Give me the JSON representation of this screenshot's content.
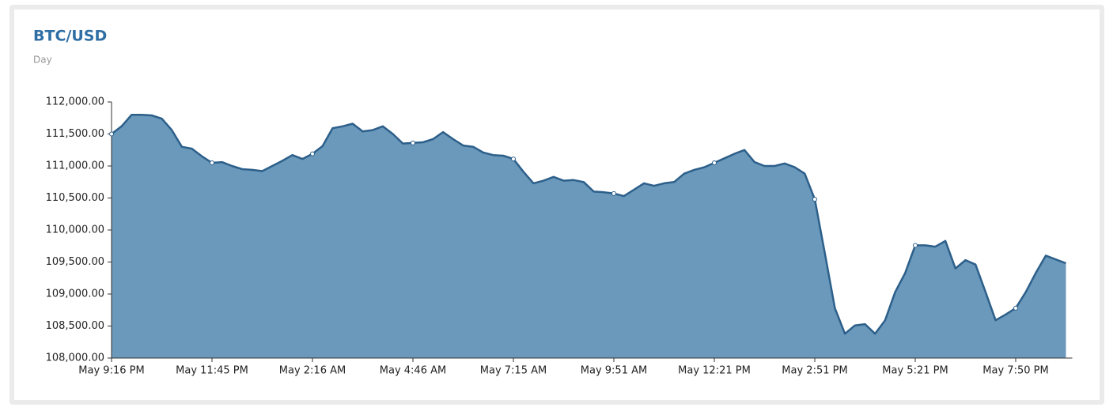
{
  "chart_data": {
    "type": "area",
    "title": "BTC/USD",
    "subtitle": "Day",
    "color": "#6b99bb",
    "line_color": "#2c5f8a",
    "categories": [
      "May 9:16 PM",
      null,
      null,
      null,
      null,
      null,
      null,
      null,
      null,
      null,
      "May 11:45 PM",
      null,
      null,
      null,
      null,
      null,
      null,
      null,
      null,
      null,
      "May 2:16 AM",
      null,
      null,
      null,
      null,
      null,
      null,
      null,
      null,
      null,
      "May 4:46 AM",
      null,
      null,
      null,
      null,
      null,
      null,
      null,
      null,
      null,
      "May 7:15 AM",
      null,
      null,
      null,
      null,
      null,
      null,
      null,
      null,
      null,
      "May 9:51 AM",
      null,
      null,
      null,
      null,
      null,
      null,
      null,
      null,
      null,
      "May 12:21 PM",
      null,
      null,
      null,
      null,
      null,
      null,
      null,
      null,
      null,
      "May 2:51 PM",
      null,
      null,
      null,
      null,
      null,
      null,
      null,
      null,
      null,
      "May 5:21 PM",
      null,
      null,
      null,
      null,
      null,
      null,
      null,
      null,
      null,
      "May 7:50 PM",
      null,
      null,
      null,
      null,
      null
    ],
    "values": [
      111500,
      111620,
      111800,
      111800,
      111790,
      111740,
      111560,
      111300,
      111270,
      111150,
      111050,
      111060,
      111000,
      110950,
      110940,
      110920,
      111000,
      111080,
      111170,
      111110,
      111190,
      111310,
      111590,
      111620,
      111660,
      111540,
      111560,
      111620,
      111500,
      111350,
      111360,
      111370,
      111420,
      111530,
      111420,
      111320,
      111300,
      111210,
      111170,
      111160,
      111110,
      110910,
      110730,
      110770,
      110830,
      110770,
      110780,
      110750,
      110600,
      110590,
      110570,
      110530,
      110630,
      110730,
      110690,
      110730,
      110750,
      110880,
      110940,
      110980,
      111050,
      111120,
      111190,
      111250,
      111060,
      111000,
      111000,
      111040,
      110980,
      110880,
      110480,
      109640,
      108780,
      108380,
      108510,
      108530,
      108380,
      108590,
      109030,
      109330,
      109760,
      109760,
      109740,
      109830,
      109400,
      109530,
      109460,
      109030,
      108590,
      108680,
      108780,
      109030,
      109330,
      109600,
      109540,
      109480
    ],
    "ylim": [
      108000,
      112000
    ],
    "yticks": [
      {
        "value": 108000,
        "label": "108,000.00"
      },
      {
        "value": 108500,
        "label": "108,500.00"
      },
      {
        "value": 109000,
        "label": "109,000.00"
      },
      {
        "value": 109500,
        "label": "109,500.00"
      },
      {
        "value": 110000,
        "label": "110,000.00"
      },
      {
        "value": 110500,
        "label": "110,500.00"
      },
      {
        "value": 111000,
        "label": "111,000.00"
      },
      {
        "value": 111500,
        "label": "111,500.00"
      },
      {
        "value": 112000,
        "label": "112,000.00"
      }
    ]
  }
}
